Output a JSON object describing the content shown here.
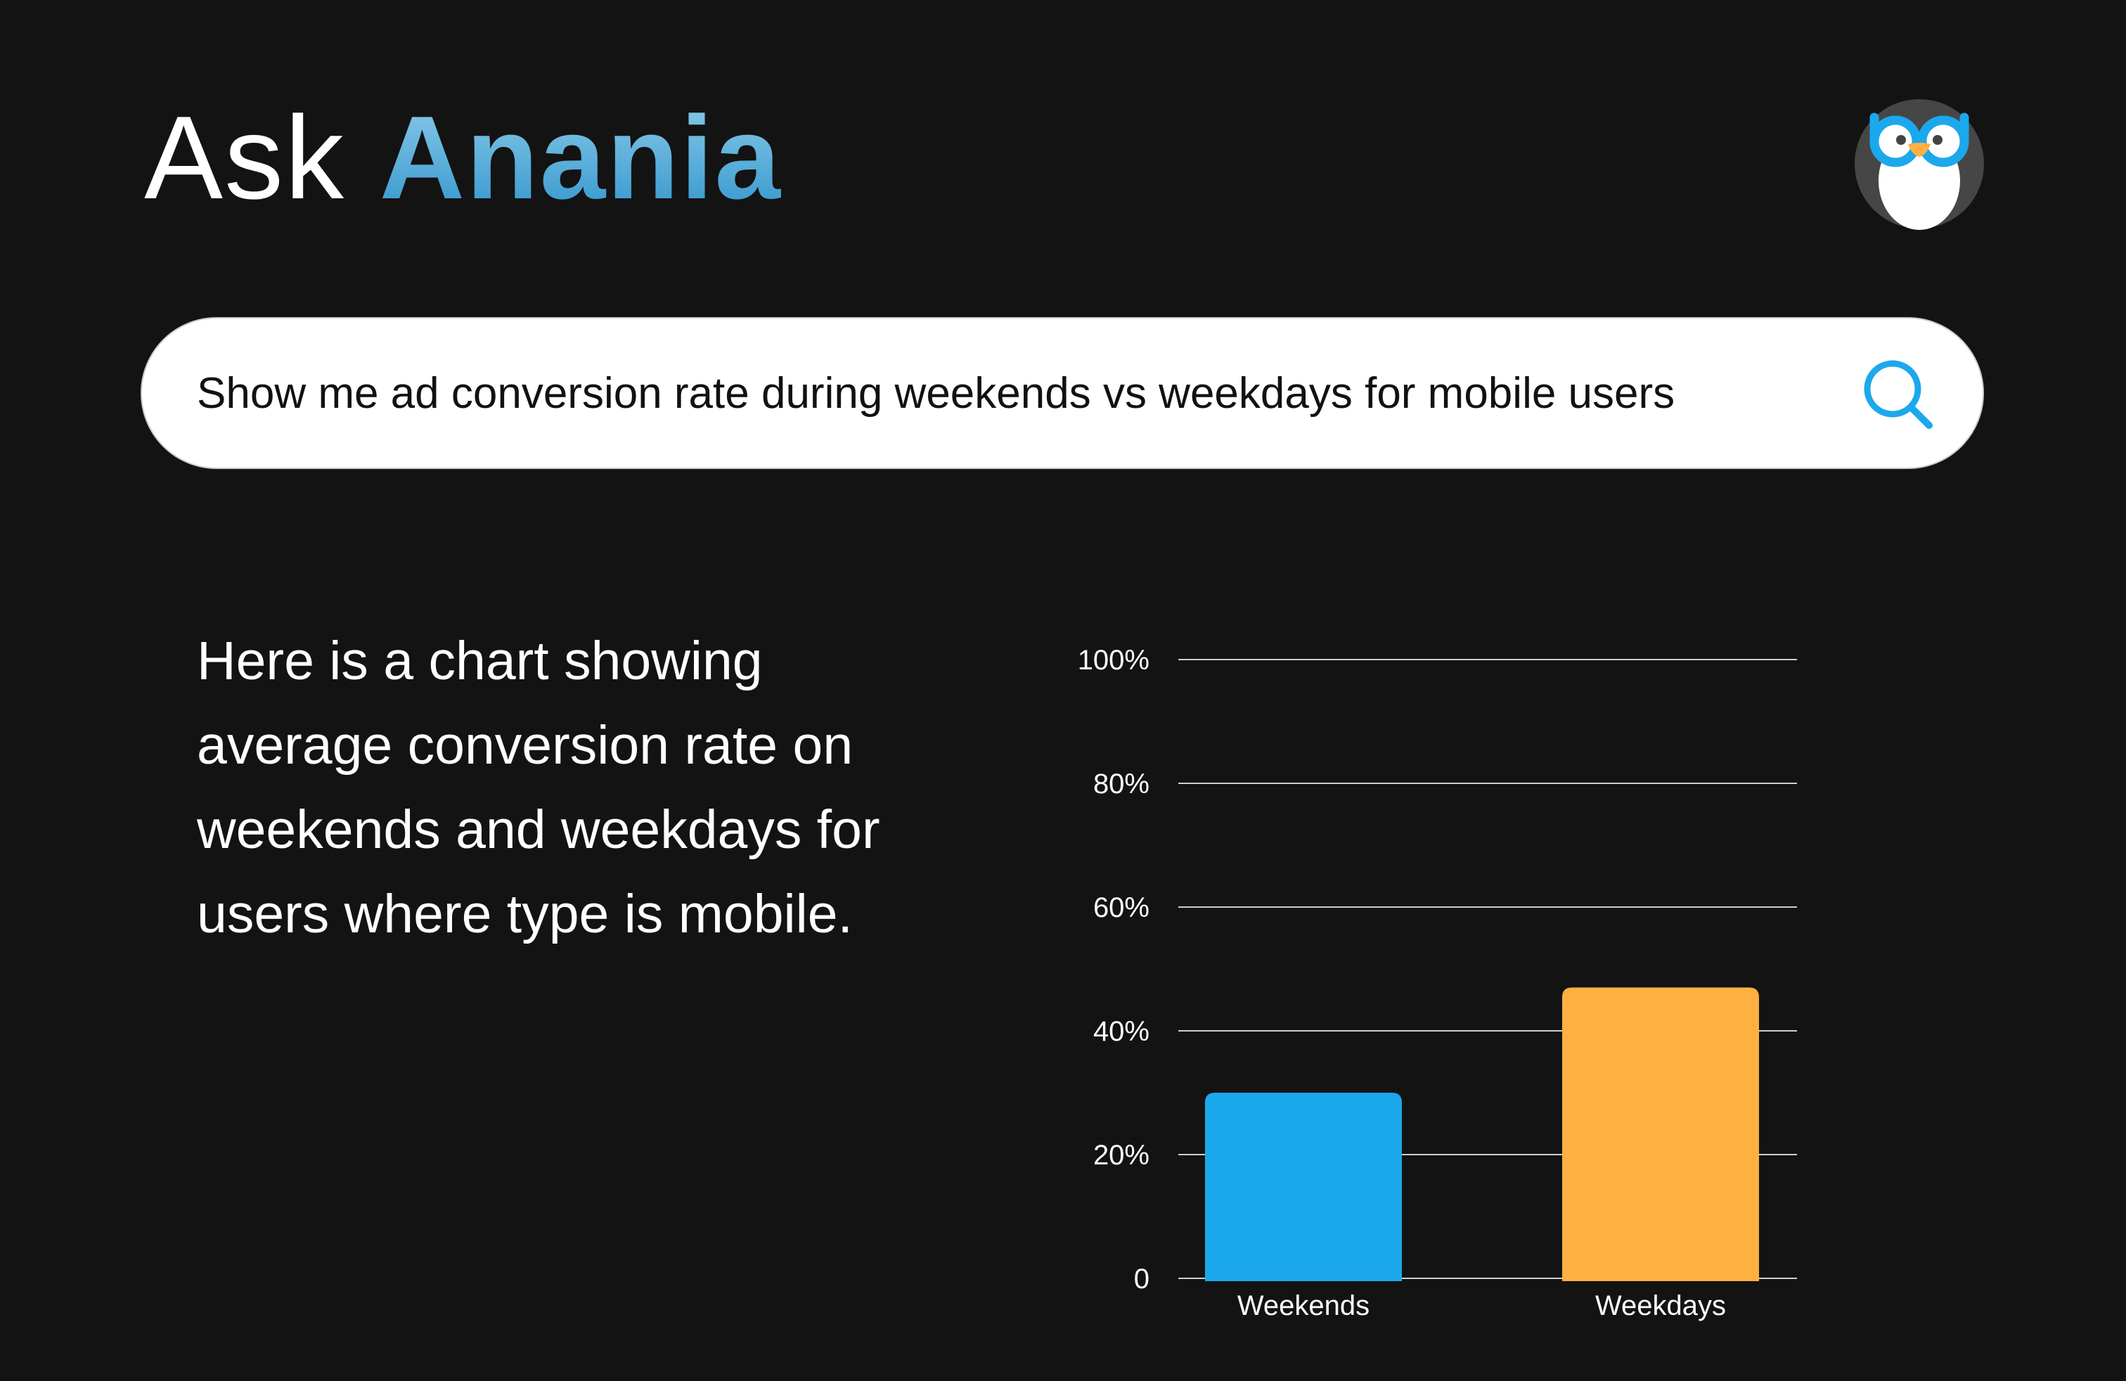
{
  "header": {
    "title_prefix": "Ask",
    "title_brand": "Anania",
    "logo": "owl-logo-icon"
  },
  "search": {
    "value": "Show me ad conversion rate during weekends vs weekdays for mobile users",
    "icon": "search-icon"
  },
  "answer": {
    "text": "Here is a chart showing average conversion rate on weekends and weekdays for users where type is mobile."
  },
  "colors": {
    "background": "#131313",
    "weekends": "#1ca8ec",
    "weekdays": "#ffb040",
    "accent": "#1ca8ec"
  },
  "chart_data": {
    "type": "bar",
    "title": "",
    "xlabel": "",
    "ylabel": "",
    "categories": [
      "Weekends",
      "Weekdays"
    ],
    "values": [
      30,
      47
    ],
    "ylim": [
      0,
      100
    ],
    "yticks": [
      0,
      20,
      40,
      60,
      80,
      100
    ],
    "ytick_labels": [
      "0",
      "20%",
      "40%",
      "60%",
      "80%",
      "100%"
    ],
    "grid": true,
    "legend": "none"
  }
}
